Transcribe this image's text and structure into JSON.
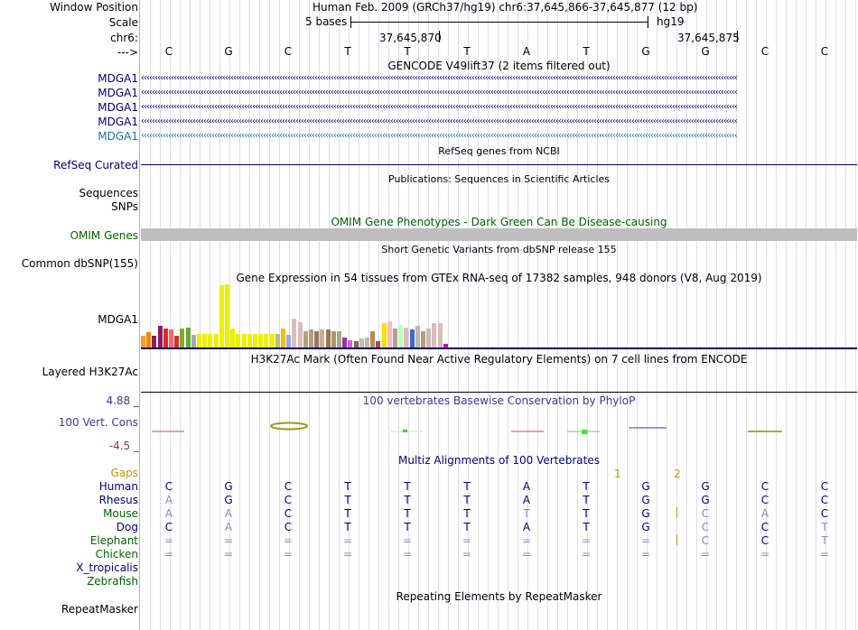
{
  "header": {
    "window_position_label": "Window Position",
    "window_position_value": "Human Feb. 2009 (GRCh37/hg19)   chr6:37,645,866-37,645,877 (12 bp)",
    "scale_label": "Scale",
    "scale_bases": "5 bases",
    "scale_assembly": "hg19",
    "chrom_label": "chr6:",
    "coord1": "37,645,870",
    "coord2": "37,645,875",
    "strand_label": "--->"
  },
  "bases": [
    "C",
    "G",
    "C",
    "T",
    "T",
    "T",
    "A",
    "T",
    "G",
    "G",
    "C",
    "C"
  ],
  "gencode": {
    "title": "GENCODE V49lift37 (2 items filtered out)",
    "items": [
      "MDGA1",
      "MDGA1",
      "MDGA1",
      "MDGA1",
      "MDGA1"
    ]
  },
  "refseq": {
    "title": "RefSeq genes from NCBI",
    "label": "RefSeq Curated"
  },
  "publications": {
    "title": "Publications: Sequences in Scientific Articles",
    "label1": "Sequences",
    "label2": "SNPs"
  },
  "omim": {
    "title": "OMIM Gene Phenotypes - Dark Green Can Be Disease-causing",
    "label": "OMIM Genes"
  },
  "dbsnp": {
    "title": "Short Genetic Variants from dbSNP release 155",
    "label": "Common dbSNP(155)"
  },
  "gtex": {
    "title": "Gene Expression in 54 tissues from GTEx RNA-seq of 17382 samples, 948 donors (V8, Aug 2019)",
    "label": "MDGA1",
    "bars": [
      {
        "v": 0.18,
        "c": "#ff9933"
      },
      {
        "v": 0.24,
        "c": "#ee8800"
      },
      {
        "v": 0.18,
        "c": "#8b1c62"
      },
      {
        "v": 0.34,
        "c": "#8b1c62"
      },
      {
        "v": 0.3,
        "c": "#ee2222"
      },
      {
        "v": 0.28,
        "c": "#ff6666"
      },
      {
        "v": 0.18,
        "c": "#cc3333"
      },
      {
        "v": 0.3,
        "c": "#88aa22"
      },
      {
        "v": 0.32,
        "c": "#66aa33"
      },
      {
        "v": 0.2,
        "c": "#aaaaaa"
      },
      {
        "v": 0.22,
        "c": "#eeee00"
      },
      {
        "v": 0.22,
        "c": "#eeee00"
      },
      {
        "v": 0.22,
        "c": "#eeee00"
      },
      {
        "v": 0.22,
        "c": "#eeee00"
      },
      {
        "v": 0.98,
        "c": "#eeee00"
      },
      {
        "v": 1.0,
        "c": "#eeee00"
      },
      {
        "v": 0.3,
        "c": "#eeee00"
      },
      {
        "v": 0.22,
        "c": "#eeee00"
      },
      {
        "v": 0.22,
        "c": "#eeee00"
      },
      {
        "v": 0.22,
        "c": "#eeee00"
      },
      {
        "v": 0.22,
        "c": "#eeee00"
      },
      {
        "v": 0.22,
        "c": "#eeee00"
      },
      {
        "v": 0.22,
        "c": "#eeee00"
      },
      {
        "v": 0.22,
        "c": "#eeee00"
      },
      {
        "v": 0.22,
        "c": "#bbbb88"
      },
      {
        "v": 0.3,
        "c": "#ffbb00"
      },
      {
        "v": 0.2,
        "c": "#99aadd"
      },
      {
        "v": 0.46,
        "c": "#ddbbbb"
      },
      {
        "v": 0.4,
        "c": "#ddbbbb"
      },
      {
        "v": 0.26,
        "c": "#aaaa77"
      },
      {
        "v": 0.28,
        "c": "#bb9988"
      },
      {
        "v": 0.26,
        "c": "#997766"
      },
      {
        "v": 0.28,
        "c": "#ccaa99"
      },
      {
        "v": 0.28,
        "c": "#997755"
      },
      {
        "v": 0.26,
        "c": "#aa9966"
      },
      {
        "v": 0.26,
        "c": "#aaaa88"
      },
      {
        "v": 0.16,
        "c": "#9933aa"
      },
      {
        "v": 0.12,
        "c": "#cc66cc"
      },
      {
        "v": 0.1,
        "c": "#886644"
      },
      {
        "v": 0.14,
        "c": "#ccbbaa"
      },
      {
        "v": 0.16,
        "c": "#bbbbaa"
      },
      {
        "v": 0.26,
        "c": "#bb8855"
      },
      {
        "v": 0.1,
        "c": "#aa4466"
      },
      {
        "v": 0.38,
        "c": "#ffdd00"
      },
      {
        "v": 0.42,
        "c": "#ffbbbb"
      },
      {
        "v": 0.3,
        "c": "#bb9999"
      },
      {
        "v": 0.36,
        "c": "#bbffbb"
      },
      {
        "v": 0.32,
        "c": "#ddbbbb"
      },
      {
        "v": 0.28,
        "c": "#4466cc"
      },
      {
        "v": 0.34,
        "c": "#bbbbaa"
      },
      {
        "v": 0.26,
        "c": "#bb9988"
      },
      {
        "v": 0.3,
        "c": "#ccbbaa"
      },
      {
        "v": 0.38,
        "c": "#ddbbbb"
      },
      {
        "v": 0.38,
        "c": "#ddbbbb"
      },
      {
        "v": 0.06,
        "c": "#cc00cc"
      }
    ]
  },
  "h3k27ac": {
    "title": "H3K27Ac Mark (Often Found Near Active Regulatory Elements) on 7 cell lines from ENCODE",
    "label": "Layered H3K27Ac"
  },
  "phylop": {
    "title": "100 vertebrates Basewise Conservation by PhyloP",
    "label": "100 Vert. Cons",
    "max": "4.88 _",
    "min": "-4.5 _"
  },
  "multiz": {
    "title": "Multiz Alignments of 100 Vertebrates",
    "gaps_label": "Gaps",
    "gaps": [
      "1",
      "2"
    ],
    "species": [
      {
        "name": "Human",
        "bases": [
          "C",
          "G",
          "C",
          "T",
          "T",
          "T",
          "A",
          "T",
          "G",
          "G",
          "C",
          "C"
        ]
      },
      {
        "name": "Rhesus",
        "bases": [
          "A",
          "G",
          "C",
          "T",
          "T",
          "T",
          "A",
          "T",
          "G",
          "G",
          "C",
          "C"
        ]
      },
      {
        "name": "Mouse",
        "bases": [
          "A",
          "A",
          "C",
          "T",
          "T",
          "T",
          "T",
          "T",
          "G",
          "C",
          "A",
          "C"
        ]
      },
      {
        "name": "Dog",
        "bases": [
          "C",
          "A",
          "C",
          "T",
          "T",
          "T",
          "A",
          "T",
          "G",
          "C",
          "C",
          "T"
        ]
      },
      {
        "name": "Elephant",
        "bases": [
          "=",
          "=",
          "=",
          "=",
          "=",
          "=",
          "=",
          "=",
          "=",
          "C",
          "C",
          "T"
        ]
      },
      {
        "name": "Chicken",
        "bases": [
          "=",
          "=",
          "=",
          "=",
          "=",
          "=",
          "=",
          "=",
          "=",
          "=",
          "=",
          "="
        ]
      },
      {
        "name": "X_tropicalis",
        "bases": []
      },
      {
        "name": "Zebrafish",
        "bases": []
      }
    ]
  },
  "repeatmasker": {
    "title": "Repeating Elements by RepeatMasker",
    "label": "RepeatMasker"
  }
}
